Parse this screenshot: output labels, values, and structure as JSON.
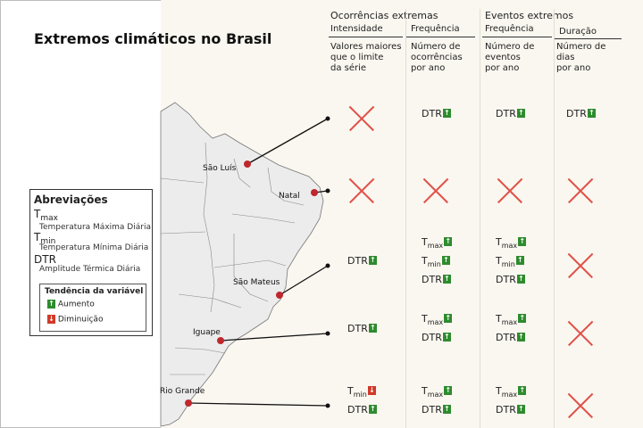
{
  "title": "Extremos climáticos no Brasil",
  "headers": {
    "group1": "Ocorrências extremas",
    "group2": "Eventos extremos",
    "col1": {
      "label": "Intensidade",
      "desc": "Valores maiores\nque o limite\nda série"
    },
    "col2": {
      "label": "Frequência",
      "desc": "Número de\nocorrências\npor ano"
    },
    "col3": {
      "label": "Frequência",
      "desc": "Número de\neventos\npor ano"
    },
    "col4": {
      "label": "Duração",
      "desc": "Número de\ndias\npor ano"
    }
  },
  "cities": [
    "São Luís",
    "Natal",
    "São Mateus",
    "Iguape",
    "Rio Grande"
  ],
  "legend": {
    "title": "Abreviações",
    "abbrs": [
      {
        "base": "T",
        "sub": "max",
        "desc": "Temperatura Máxima Diária"
      },
      {
        "base": "T",
        "sub": "min",
        "desc": "Temperatura Mínima Diária"
      },
      {
        "base": "DTR",
        "sub": "",
        "desc": "Amplitude Térmica Diária"
      }
    ],
    "trend_title": "Tendência da variável",
    "increase": "Aumento",
    "decrease": "Diminuição"
  },
  "cells": {
    "sao_luis": {
      "intensidade": "none",
      "freq_ocorrencias": [
        {
          "base": "DTR",
          "sub": "",
          "trend": "up"
        }
      ],
      "freq_eventos": [
        {
          "base": "DTR",
          "sub": "",
          "trend": "up"
        }
      ],
      "duracao": [
        {
          "base": "DTR",
          "sub": "",
          "trend": "up"
        }
      ]
    },
    "natal": {
      "intensidade": "none",
      "freq_ocorrencias": "none",
      "freq_eventos": "none",
      "duracao": "none"
    },
    "sao_mateus": {
      "intensidade": [
        {
          "base": "DTR",
          "sub": "",
          "trend": "up"
        }
      ],
      "freq_ocorrencias": [
        {
          "base": "T",
          "sub": "max",
          "trend": "up"
        },
        {
          "base": "T",
          "sub": "min",
          "trend": "up"
        },
        {
          "base": "DTR",
          "sub": "",
          "trend": "up"
        }
      ],
      "freq_eventos": [
        {
          "base": "T",
          "sub": "max",
          "trend": "up"
        },
        {
          "base": "T",
          "sub": "min",
          "trend": "up"
        },
        {
          "base": "DTR",
          "sub": "",
          "trend": "up"
        }
      ],
      "duracao": "none"
    },
    "iguape": {
      "intensidade": [
        {
          "base": "DTR",
          "sub": "",
          "trend": "up"
        }
      ],
      "freq_ocorrencias": [
        {
          "base": "T",
          "sub": "max",
          "trend": "up"
        },
        {
          "base": "DTR",
          "sub": "",
          "trend": "up"
        }
      ],
      "freq_eventos": [
        {
          "base": "T",
          "sub": "max",
          "trend": "up"
        },
        {
          "base": "DTR",
          "sub": "",
          "trend": "up"
        }
      ],
      "duracao": "none"
    },
    "rio_grande": {
      "intensidade": [
        {
          "base": "T",
          "sub": "min",
          "trend": "down"
        },
        {
          "base": "DTR",
          "sub": "",
          "trend": "up"
        }
      ],
      "freq_ocorrencias": [
        {
          "base": "T",
          "sub": "max",
          "trend": "up"
        },
        {
          "base": "DTR",
          "sub": "",
          "trend": "up"
        }
      ],
      "freq_eventos": [
        {
          "base": "T",
          "sub": "max",
          "trend": "up"
        },
        {
          "base": "DTR",
          "sub": "",
          "trend": "up"
        }
      ],
      "duracao": "none"
    }
  },
  "colors": {
    "increase": "#2e8b2e",
    "decrease": "#d03a2a",
    "cross": "#e0524a",
    "city_dot": "#c0272d"
  }
}
